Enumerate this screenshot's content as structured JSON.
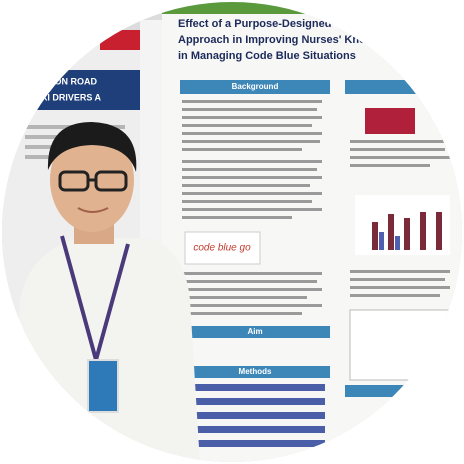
{
  "poster": {
    "title_lines": [
      "Effect of a Purpose-Designed Se",
      "Approach in Improving Nurses' Knowle",
      "in Managing Code Blue Situations"
    ],
    "sections": [
      "Background",
      "Aim",
      "Methods"
    ],
    "logo": "code blue go"
  },
  "side_poster": {
    "lines": [
      "YS ON ROAD",
      "TAXI DRIVERS A"
    ]
  }
}
